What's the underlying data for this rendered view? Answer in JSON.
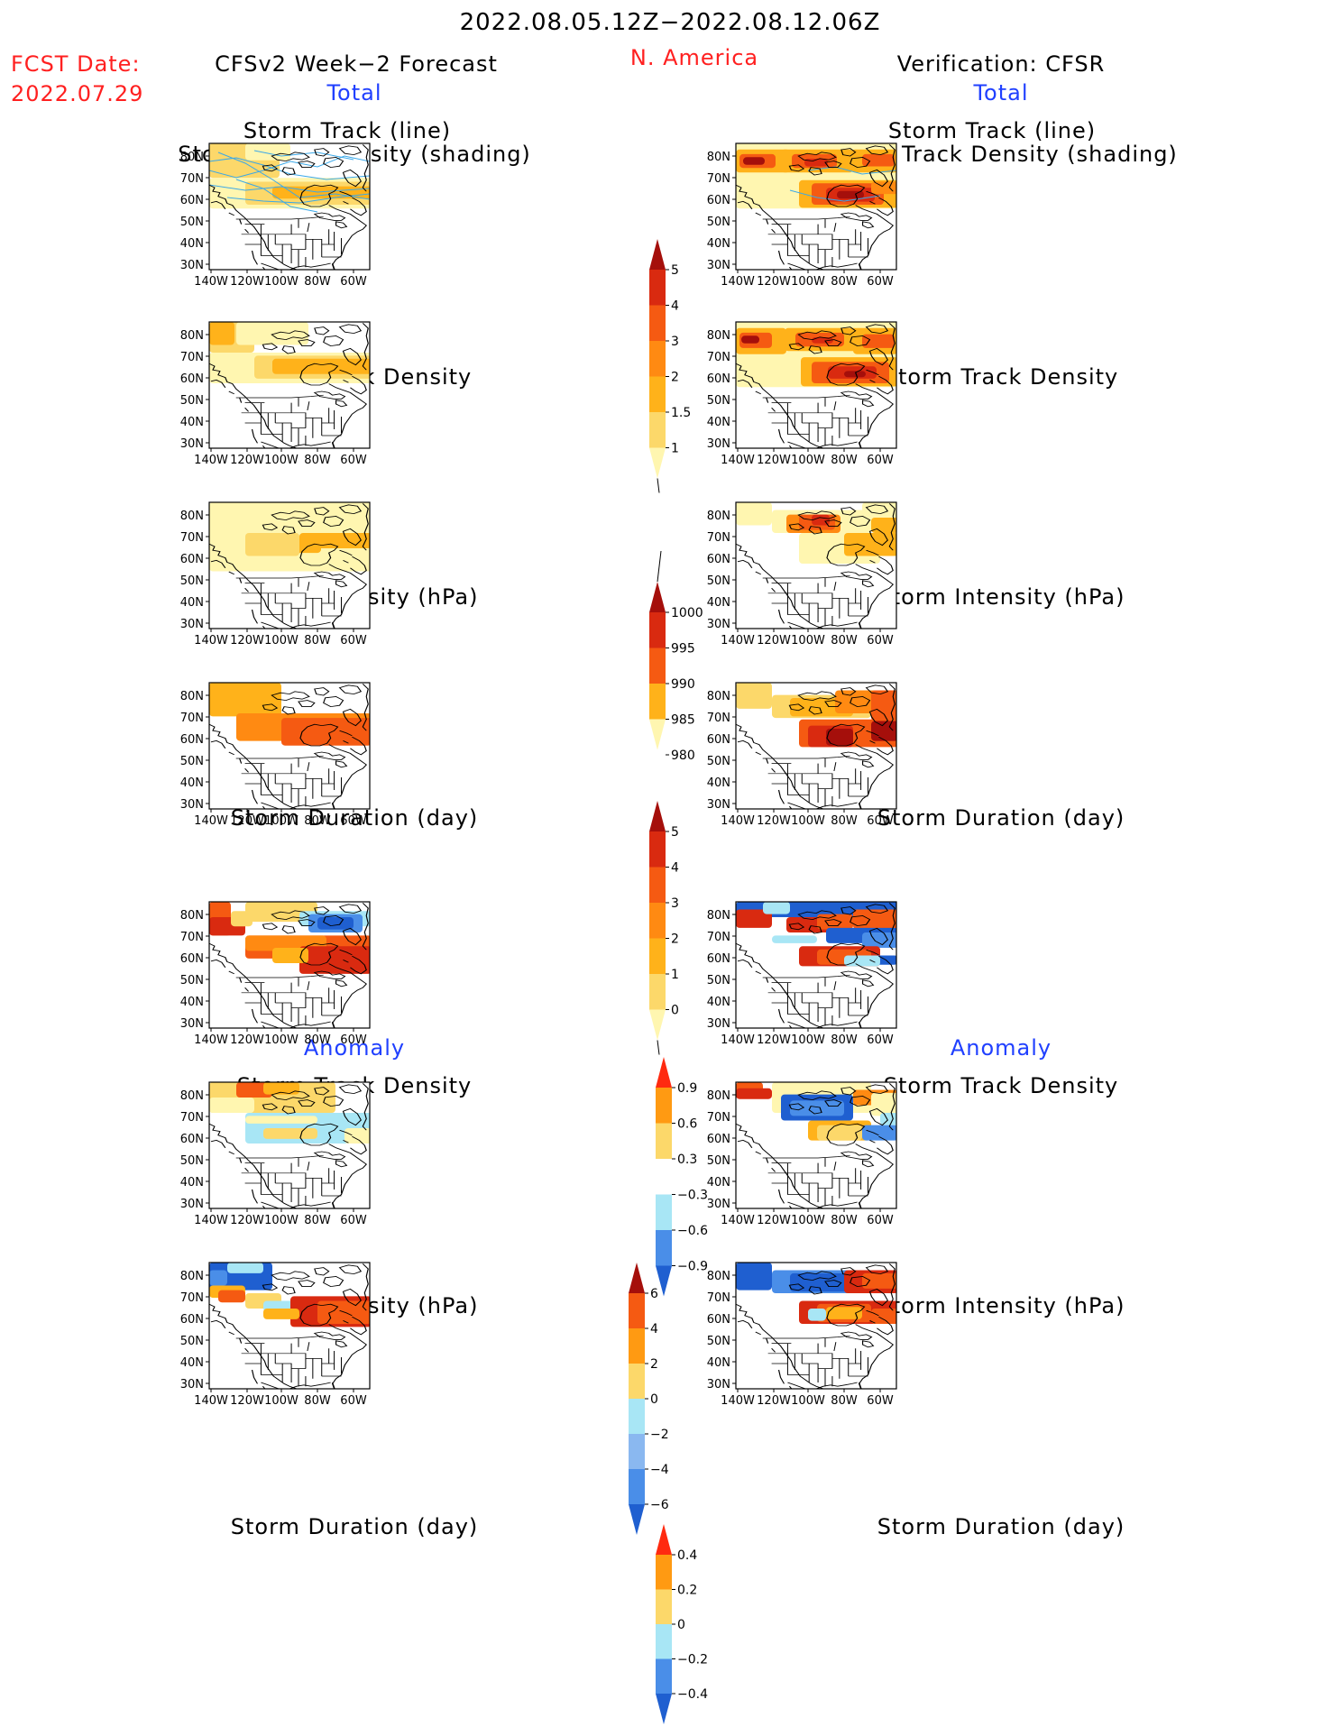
{
  "header": {
    "date_range": "2022.08.05.12Z−2022.08.12.06Z",
    "fcst_label": "FCST Date:",
    "fcst_date": "2022.07.29",
    "forecast_title": "CFSv2 Week−2 Forecast",
    "region": "N. America",
    "verification_title": "Verification: CFSR"
  },
  "sections": {
    "total_label": "Total",
    "anomaly_label": "Anomaly"
  },
  "panel_titles": {
    "track_line": "Storm Track (line)",
    "track_density_shading": "Storm Track Density (shading)",
    "density": "Storm Track Density",
    "intensity": "Storm Intensity (hPa)",
    "duration": "Storm Duration (day)"
  },
  "axes": {
    "lat_labels": [
      "80N",
      "70N",
      "60N",
      "50N",
      "40N",
      "30N"
    ],
    "lon_labels": [
      "140W",
      "120W",
      "100W",
      "80W",
      "60W"
    ]
  },
  "colorbars": {
    "density_total": {
      "labels": [
        "5",
        "4",
        "3",
        "2",
        "1.5",
        "1"
      ],
      "colors": [
        "#fff6b0",
        "#fcd86a",
        "#ffb21a",
        "#ff8a12",
        "#f55a12",
        "#d92a10",
        "#a50f0b"
      ]
    },
    "intensity_total": {
      "labels": [
        "1000",
        "995",
        "990",
        "985",
        "980"
      ],
      "colors": [
        "#fff6b0",
        "#ffb21a",
        "#f55a12",
        "#d92a10",
        "#a50f0b"
      ]
    },
    "duration_total": {
      "labels": [
        "5",
        "4",
        "3",
        "2",
        "1",
        "0"
      ],
      "colors": [
        "#fff6b0",
        "#fcd86a",
        "#ffb21a",
        "#ff8a12",
        "#f55a12",
        "#d92a10",
        "#a50f0b"
      ]
    },
    "density_anom": {
      "labels": [
        "0.9",
        "0.6",
        "0.3",
        "−0.3",
        "−0.6",
        "−0.9"
      ],
      "colors": [
        "#1f5fd0",
        "#4a8ee8",
        "#a8e6f5",
        "#ffffff",
        "#fcd86a",
        "#ff9a12",
        "#ff2a10"
      ]
    },
    "intensity_anom": {
      "labels": [
        "6",
        "4",
        "2",
        "0",
        "−2",
        "−4",
        "−6"
      ],
      "colors": [
        "#1f5fd0",
        "#4a8ee8",
        "#8ab8f0",
        "#a8e6f5",
        "#fcd86a",
        "#ff9a12",
        "#f55a12",
        "#a50f0b"
      ]
    },
    "duration_anom": {
      "labels": [
        "0.4",
        "0.2",
        "0",
        "−0.2",
        "−0.4"
      ],
      "colors": [
        "#1f5fd0",
        "#4a8ee8",
        "#a8e6f5",
        "#fcd86a",
        "#ff9a12",
        "#ff2a10"
      ]
    }
  }
}
